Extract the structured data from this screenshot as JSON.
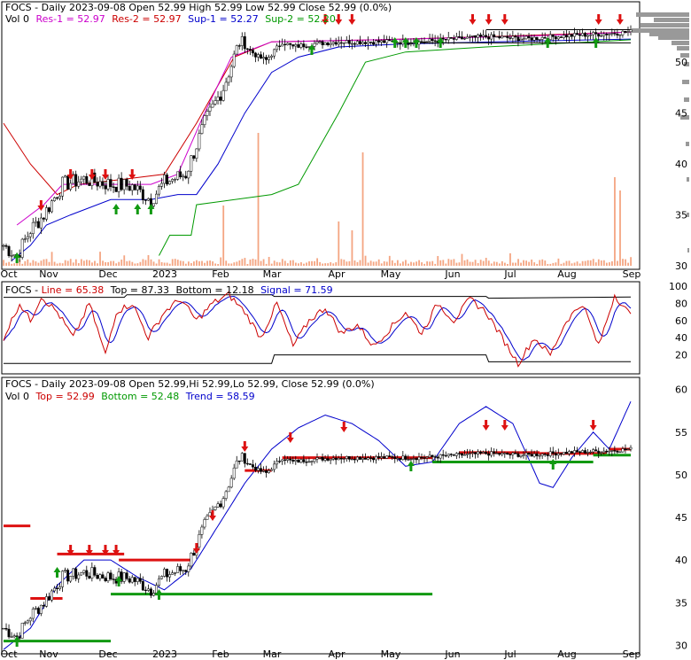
{
  "panel1": {
    "title": "FOCS - Daily 2023-09-08 Open 52.99  High 52.99  Low 52.99  Close 52.99 (0.0%)",
    "legend2_prefix": "Vol 0",
    "res1": "Res-1 = 52.97",
    "res2": "Res-2 = 52.97",
    "sup1": "Sup-1 = 52.27",
    "sup2": "Sup-2 = 52.20"
  },
  "panel2": {
    "prefix": "FOCS - ",
    "line": "Line = 65.38",
    "top": "Top = 87.33",
    "bottom": "Bottom = 12.18",
    "signal": "Signal = 71.59"
  },
  "panel3": {
    "title": "FOCS - Daily 2023-09-08 Open 52.99,Hi 52.99,Lo 52.99, Close 52.99 (0.0%)",
    "prefix": "Vol 0",
    "top": "Top = 52.99",
    "bottom": "Bottom = 52.48",
    "trend": "Trend = 58.59"
  },
  "axes": {
    "x_labels": [
      "Oct",
      "Nov",
      "Dec",
      "2023",
      "Feb",
      "Mar",
      "Apr",
      "May",
      "Jun",
      "Jul",
      "Aug",
      "Sep"
    ],
    "price_ticks_1": [
      "50",
      "45",
      "40",
      "35",
      "30"
    ],
    "osc_ticks": [
      "100",
      "80",
      "60",
      "40",
      "20"
    ],
    "price_ticks_3": [
      "60",
      "55",
      "50",
      "45",
      "40",
      "35",
      "30"
    ]
  },
  "colors": {
    "res1": "#cc00cc",
    "res2": "#cc0000",
    "sup1": "#0000cc",
    "sup2": "#009900",
    "line": "#cc0000",
    "signal": "#0000cc",
    "trend": "#0000cc",
    "volume": "#f4a582",
    "up_arrow": "#119911",
    "down_arrow": "#dd1111"
  },
  "chart_data": {
    "type": "line",
    "x": [
      "2022-10",
      "2022-11",
      "2022-12",
      "2023-01",
      "2023-02",
      "2023-03",
      "2023-04",
      "2023-05",
      "2023-06",
      "2023-07",
      "2023-08",
      "2023-09"
    ],
    "series": [
      {
        "name": "Close",
        "values": [
          32.5,
          38,
          37.5,
          39,
          50.5,
          51.5,
          52,
          52,
          52.5,
          52.8,
          52.8,
          52.99
        ]
      },
      {
        "name": "Line",
        "values": [
          40,
          70,
          45,
          75,
          80,
          55,
          45,
          60,
          75,
          20,
          70,
          65.38
        ]
      },
      {
        "name": "Signal",
        "values": [
          45,
          65,
          50,
          70,
          82,
          60,
          48,
          55,
          70,
          25,
          65,
          71.59
        ]
      },
      {
        "name": "Trend",
        "values": [
          30,
          33,
          36,
          38,
          48,
          53,
          56,
          52,
          57,
          50,
          53,
          58.59
        ]
      }
    ],
    "ylim_price": [
      30,
      53
    ],
    "ylim_osc": [
      0,
      100
    ],
    "ylim_price3": [
      30,
      60
    ]
  }
}
